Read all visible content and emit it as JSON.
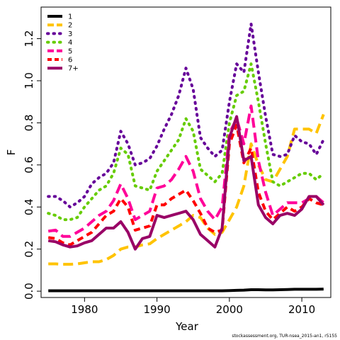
{
  "chart_data": {
    "type": "line",
    "xlabel": "Year",
    "ylabel": "F",
    "xlim": [
      1974,
      2014
    ],
    "ylim": [
      -0.03,
      1.35
    ],
    "x_ticks": [
      1980,
      1990,
      2000,
      2010
    ],
    "x_tick_labels": [
      "1980",
      "1990",
      "2000",
      "2010"
    ],
    "y_ticks": [
      0.0,
      0.2,
      0.4,
      0.6,
      0.8,
      1.0,
      1.2
    ],
    "y_tick_labels": [
      "0.0",
      "0.2",
      "0.4",
      "0.6",
      "0.8",
      "1.0",
      "1.2"
    ],
    "legend_position": "top-left",
    "grid": false,
    "x": [
      1975,
      1976,
      1977,
      1978,
      1979,
      1980,
      1981,
      1982,
      1983,
      1984,
      1985,
      1986,
      1987,
      1988,
      1989,
      1990,
      1991,
      1992,
      1993,
      1994,
      1995,
      1996,
      1997,
      1998,
      1999,
      2000,
      2001,
      2002,
      2003,
      2004,
      2005,
      2006,
      2007,
      2008,
      2009,
      2010,
      2011,
      2012,
      2013
    ],
    "series": [
      {
        "name": "1",
        "color": "#000000",
        "dash": "solid",
        "values": [
          0.002,
          0.002,
          0.002,
          0.002,
          0.002,
          0.002,
          0.002,
          0.002,
          0.002,
          0.002,
          0.002,
          0.002,
          0.002,
          0.002,
          0.002,
          0.002,
          0.002,
          0.002,
          0.002,
          0.002,
          0.002,
          0.002,
          0.002,
          0.002,
          0.002,
          0.003,
          0.004,
          0.005,
          0.007,
          0.007,
          0.006,
          0.006,
          0.007,
          0.008,
          0.009,
          0.009,
          0.009,
          0.009,
          0.01
        ]
      },
      {
        "name": "2",
        "color": "#FFC300",
        "dash": "long",
        "values": [
          0.13,
          0.13,
          0.128,
          0.128,
          0.13,
          0.135,
          0.14,
          0.14,
          0.15,
          0.17,
          0.2,
          0.21,
          0.21,
          0.22,
          0.225,
          0.25,
          0.27,
          0.29,
          0.31,
          0.33,
          0.36,
          0.35,
          0.3,
          0.27,
          0.28,
          0.34,
          0.4,
          0.5,
          0.7,
          0.6,
          0.53,
          0.52,
          0.58,
          0.64,
          0.77,
          0.77,
          0.77,
          0.75,
          0.84
        ]
      },
      {
        "name": "3",
        "color": "#660099",
        "dash": "dots",
        "values": [
          0.45,
          0.45,
          0.43,
          0.4,
          0.42,
          0.45,
          0.51,
          0.54,
          0.56,
          0.61,
          0.76,
          0.7,
          0.6,
          0.61,
          0.63,
          0.69,
          0.77,
          0.84,
          0.93,
          1.06,
          0.96,
          0.73,
          0.68,
          0.64,
          0.67,
          0.9,
          1.08,
          1.04,
          1.27,
          1.04,
          0.83,
          0.65,
          0.64,
          0.65,
          0.74,
          0.71,
          0.7,
          0.65,
          0.72
        ]
      },
      {
        "name": "4",
        "color": "#66CC00",
        "dash": "dots",
        "values": [
          0.37,
          0.36,
          0.34,
          0.34,
          0.35,
          0.4,
          0.44,
          0.48,
          0.5,
          0.56,
          0.68,
          0.65,
          0.5,
          0.49,
          0.48,
          0.57,
          0.62,
          0.67,
          0.72,
          0.82,
          0.76,
          0.58,
          0.55,
          0.52,
          0.56,
          0.8,
          0.93,
          0.95,
          1.08,
          0.9,
          0.7,
          0.52,
          0.5,
          0.52,
          0.54,
          0.56,
          0.56,
          0.53,
          0.56
        ]
      },
      {
        "name": "5",
        "color": "#FF0099",
        "dash": "long",
        "values": [
          0.285,
          0.29,
          0.26,
          0.26,
          0.28,
          0.3,
          0.33,
          0.36,
          0.38,
          0.43,
          0.51,
          0.44,
          0.34,
          0.36,
          0.38,
          0.49,
          0.5,
          0.53,
          0.58,
          0.64,
          0.57,
          0.44,
          0.38,
          0.34,
          0.4,
          0.75,
          0.82,
          0.7,
          0.88,
          0.62,
          0.47,
          0.36,
          0.39,
          0.42,
          0.42,
          0.42,
          0.44,
          0.45,
          0.42
        ]
      },
      {
        "name": "6",
        "color": "#FF0000",
        "dash": "medium",
        "values": [
          0.255,
          0.25,
          0.23,
          0.22,
          0.24,
          0.26,
          0.28,
          0.32,
          0.36,
          0.38,
          0.44,
          0.4,
          0.29,
          0.3,
          0.31,
          0.41,
          0.41,
          0.44,
          0.46,
          0.48,
          0.43,
          0.37,
          0.3,
          0.28,
          0.29,
          0.7,
          0.79,
          0.61,
          0.68,
          0.47,
          0.38,
          0.34,
          0.37,
          0.4,
          0.38,
          0.4,
          0.44,
          0.42,
          0.41
        ]
      },
      {
        "name": "7+",
        "color": "#990066",
        "dash": "solid",
        "values": [
          0.24,
          0.235,
          0.22,
          0.21,
          0.215,
          0.23,
          0.24,
          0.27,
          0.3,
          0.3,
          0.33,
          0.28,
          0.2,
          0.25,
          0.26,
          0.36,
          0.35,
          0.36,
          0.37,
          0.38,
          0.34,
          0.27,
          0.24,
          0.21,
          0.3,
          0.73,
          0.83,
          0.62,
          0.64,
          0.41,
          0.35,
          0.32,
          0.36,
          0.37,
          0.36,
          0.39,
          0.45,
          0.45,
          0.41
        ]
      }
    ]
  },
  "credit": "stockassessment.org, TUR-nsea_2015-an1, r5155"
}
